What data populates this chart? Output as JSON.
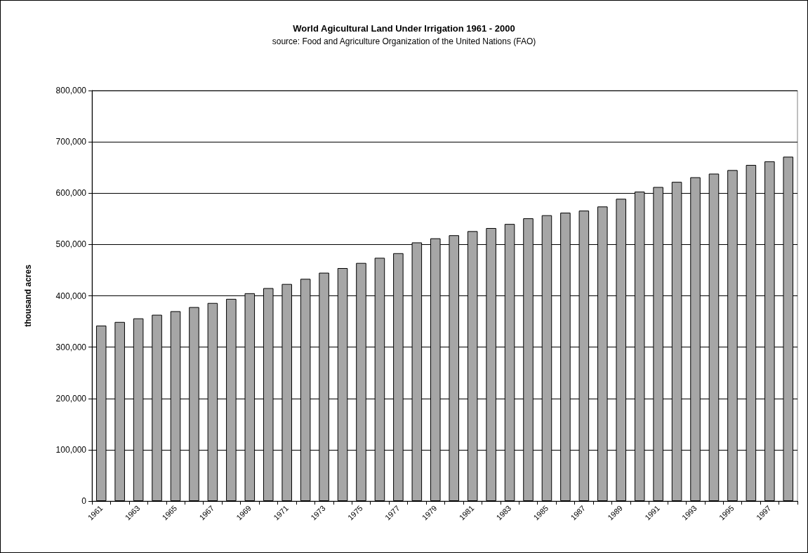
{
  "chart_data": {
    "type": "bar",
    "title": "World Agicultural Land Under Irrigation 1961 - 2000",
    "subtitle": "source: Food and Agriculture Organization of the United Nations (FAO)",
    "ylabel": "thousand acres",
    "categories": [
      "1961",
      null,
      "1963",
      null,
      "1965",
      null,
      "1967",
      null,
      "1969",
      null,
      "1971",
      null,
      "1973",
      null,
      "1975",
      null,
      "1977",
      null,
      "1979",
      null,
      "1981",
      null,
      "1983",
      null,
      "1985",
      null,
      "1987",
      null,
      "1989",
      null,
      "1991",
      null,
      "1993",
      null,
      "1995",
      null,
      "1997",
      null
    ],
    "values": [
      342000,
      349000,
      356000,
      363000,
      370000,
      378000,
      386000,
      394000,
      405000,
      415000,
      423000,
      433000,
      445000,
      454000,
      464000,
      474000,
      483000,
      504000,
      512000,
      518000,
      526000,
      532000,
      540000,
      551000,
      557000,
      562000,
      566000,
      574000,
      589000,
      603000,
      612000,
      622000,
      631000,
      638000,
      645000,
      655000,
      662000,
      671000
    ],
    "color": "#a6a6a6",
    "ylim": [
      0,
      800000
    ],
    "yticks": [
      {
        "value": 0,
        "label": "0"
      },
      {
        "value": 100000,
        "label": "100,000"
      },
      {
        "value": 200000,
        "label": "200,000"
      },
      {
        "value": 300000,
        "label": "300,000"
      },
      {
        "value": 400000,
        "label": "400,000"
      },
      {
        "value": 500000,
        "label": "500,000"
      },
      {
        "value": 600000,
        "label": "600,000"
      },
      {
        "value": 700000,
        "label": "700,000"
      },
      {
        "value": 800000,
        "label": "800,000"
      }
    ],
    "grid": "y"
  }
}
